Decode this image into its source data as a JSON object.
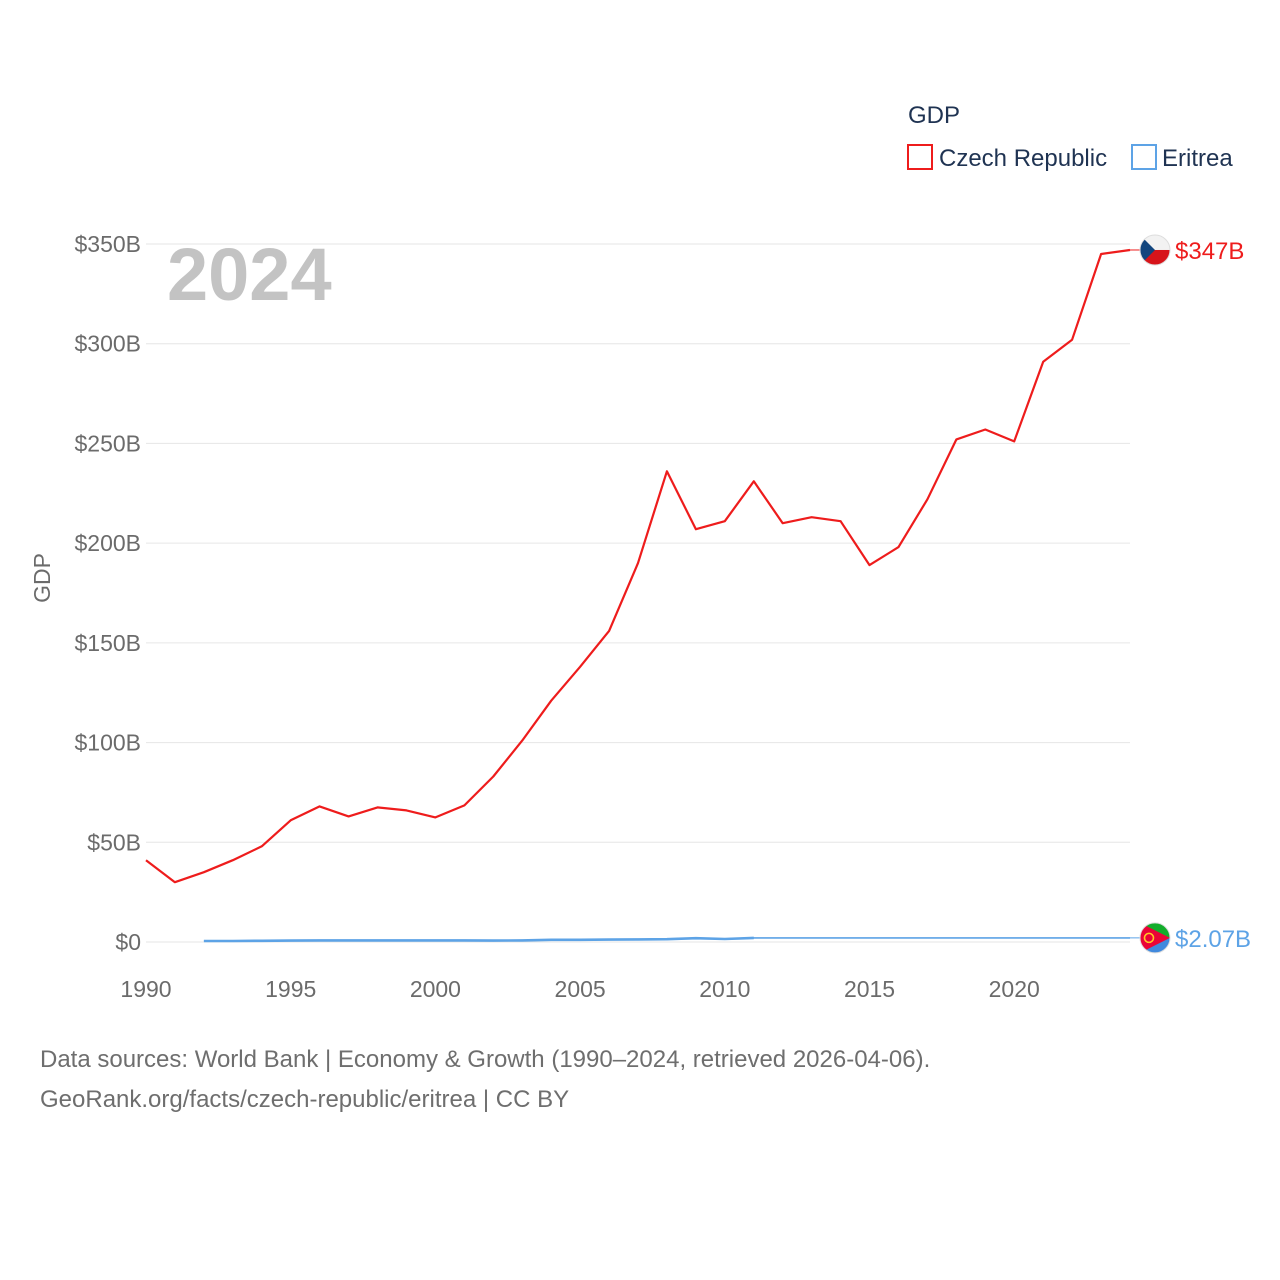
{
  "chart_data": {
    "type": "line",
    "title": "",
    "year_label": "2024",
    "xlabel": "",
    "ylabel": "GDP",
    "xlim": [
      1990,
      2024
    ],
    "ylim": [
      0,
      350
    ],
    "y_unit": "billion USD",
    "x_ticks": [
      1990,
      1995,
      2000,
      2005,
      2010,
      2015,
      2020
    ],
    "x_tick_labels": [
      "1990",
      "1995",
      "2000",
      "2005",
      "2010",
      "2015",
      "2020"
    ],
    "y_ticks": [
      0,
      50,
      100,
      150,
      200,
      250,
      300,
      350
    ],
    "y_tick_labels": [
      "$0",
      "$50B",
      "$100B",
      "$150B",
      "$200B",
      "$250B",
      "$300B",
      "$350B"
    ],
    "grid": true,
    "legend": {
      "title": "GDP",
      "position": "top-right"
    },
    "series": [
      {
        "name": "Czech Republic",
        "color": "#ee1c1c",
        "end_label": "$347B",
        "flag_icon": "czech-flag-icon",
        "points": [
          [
            1990,
            41
          ],
          [
            1991,
            30
          ],
          [
            1992,
            35
          ],
          [
            1993,
            41
          ],
          [
            1994,
            48
          ],
          [
            1995,
            61
          ],
          [
            1996,
            68
          ],
          [
            1997,
            63
          ],
          [
            1998,
            67.5
          ],
          [
            1999,
            66
          ],
          [
            2000,
            62.5
          ],
          [
            2001,
            68.5
          ],
          [
            2002,
            83
          ],
          [
            2003,
            101
          ],
          [
            2004,
            121
          ],
          [
            2005,
            138
          ],
          [
            2006,
            156
          ],
          [
            2007,
            190
          ],
          [
            2008,
            236
          ],
          [
            2009,
            207
          ],
          [
            2010,
            211
          ],
          [
            2011,
            231
          ],
          [
            2012,
            210
          ],
          [
            2013,
            213
          ],
          [
            2014,
            211
          ],
          [
            2015,
            189
          ],
          [
            2016,
            198
          ],
          [
            2017,
            222
          ],
          [
            2018,
            252
          ],
          [
            2019,
            257
          ],
          [
            2020,
            251
          ],
          [
            2021,
            291
          ],
          [
            2022,
            302
          ],
          [
            2023,
            345
          ],
          [
            2024,
            347
          ]
        ]
      },
      {
        "name": "Eritrea",
        "color": "#5da3e6",
        "end_label": "$2.07B",
        "flag_icon": "eritrea-flag-icon",
        "points": [
          [
            1992,
            0.5
          ],
          [
            1993,
            0.5
          ],
          [
            1994,
            0.6
          ],
          [
            1995,
            0.7
          ],
          [
            1996,
            0.8
          ],
          [
            1997,
            0.8
          ],
          [
            1998,
            0.8
          ],
          [
            1999,
            0.8
          ],
          [
            2000,
            0.8
          ],
          [
            2001,
            0.8
          ],
          [
            2002,
            0.7
          ],
          [
            2003,
            0.8
          ],
          [
            2004,
            1.1
          ],
          [
            2005,
            1.1
          ],
          [
            2006,
            1.2
          ],
          [
            2007,
            1.3
          ],
          [
            2008,
            1.4
          ],
          [
            2009,
            1.9
          ],
          [
            2010,
            1.5
          ],
          [
            2011,
            2.07
          ],
          [
            2024,
            2.07
          ]
        ]
      }
    ]
  },
  "footer": {
    "line1": "Data sources: World Bank | Economy & Growth (1990–2024, retrieved 2026-04-06).",
    "line2": "GeoRank.org/facts/czech-republic/eritrea | CC BY"
  }
}
